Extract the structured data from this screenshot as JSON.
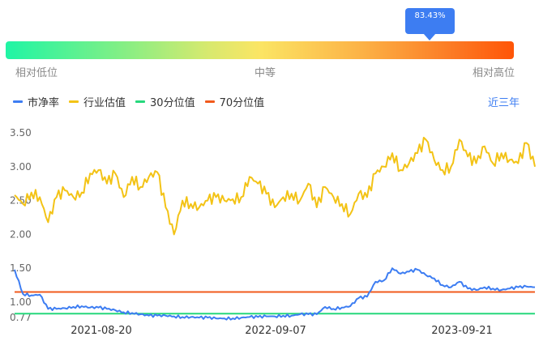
{
  "gauge": {
    "percentile_label": "83.43%",
    "percentile": 0.8343,
    "labels": {
      "low": "相对低位",
      "mid": "中等",
      "high": "相对高位"
    }
  },
  "legend": [
    {
      "name": "市净率",
      "color": "#3d7df2"
    },
    {
      "name": "行业估值",
      "color": "#f3c316"
    },
    {
      "name": "30分位值",
      "color": "#26d87c"
    },
    {
      "name": "70分位值",
      "color": "#f15a1c"
    }
  ],
  "period_button": "近三年",
  "chart_data": {
    "type": "line",
    "ylim": [
      0.77,
      3.6
    ],
    "yticks": [
      "0.77",
      "1.00",
      "1.50",
      "2.00",
      "2.50",
      "3.00",
      "3.50"
    ],
    "xlabels": [
      "2021-08-20",
      "2022-09-07",
      "2023-09-21"
    ],
    "series": [
      {
        "name": "行业估值",
        "color": "#f3c316",
        "values": [
          2.58,
          2.45,
          2.62,
          2.55,
          2.18,
          2.55,
          2.65,
          2.55,
          2.62,
          2.9,
          2.95,
          2.75,
          2.9,
          2.55,
          2.85,
          2.7,
          2.85,
          2.92,
          2.4,
          2.0,
          2.5,
          2.45,
          2.4,
          2.5,
          2.55,
          2.5,
          2.52,
          2.55,
          2.85,
          2.75,
          2.6,
          2.4,
          2.55,
          2.6,
          2.5,
          2.75,
          2.4,
          2.7,
          2.55,
          2.45,
          2.3,
          2.6,
          2.55,
          2.9,
          3.0,
          3.2,
          2.95,
          3.05,
          3.2,
          3.4,
          3.1,
          2.95,
          3.0,
          3.4,
          3.15,
          3.05,
          3.3,
          3.05,
          3.2,
          3.1,
          3.05,
          3.35,
          3.0
        ]
      },
      {
        "name": "市净率",
        "color": "#3d7df2",
        "values": [
          1.48,
          1.12,
          1.1,
          1.11,
          0.9,
          0.9,
          0.91,
          0.93,
          0.94,
          0.92,
          0.92,
          0.9,
          0.88,
          0.85,
          0.84,
          0.82,
          0.8,
          0.8,
          0.8,
          0.79,
          0.78,
          0.78,
          0.77,
          0.77,
          0.76,
          0.76,
          0.76,
          0.77,
          0.78,
          0.78,
          0.79,
          0.79,
          0.8,
          0.8,
          0.82,
          0.82,
          0.82,
          0.93,
          0.9,
          0.92,
          0.94,
          1.06,
          1.08,
          1.3,
          1.32,
          1.5,
          1.42,
          1.45,
          1.48,
          1.4,
          1.35,
          1.25,
          1.22,
          1.3,
          1.2,
          1.18,
          1.22,
          1.2,
          1.18,
          1.2,
          1.22,
          1.23,
          1.22
        ]
      }
    ],
    "reference_lines": [
      {
        "name": "30分位值",
        "value": 0.83,
        "color": "#26d87c"
      },
      {
        "name": "70分位值",
        "value": 1.15,
        "color": "#f15a1c"
      }
    ]
  }
}
